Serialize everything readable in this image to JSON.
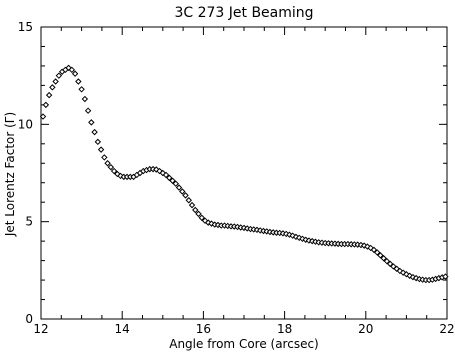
{
  "chart_data": {
    "type": "scatter",
    "title": "3C 273 Jet Beaming",
    "xlabel": "Angle from Core (arcsec)",
    "ylabel": "Jet Lorentz Factor (Γ)",
    "xlim": [
      12,
      22
    ],
    "ylim": [
      0,
      15
    ],
    "x_ticks": [
      12,
      14,
      16,
      18,
      20,
      22
    ],
    "y_ticks": [
      0,
      5,
      10,
      15
    ],
    "grid": false,
    "legend": "none",
    "marker": "diamond",
    "color": "#000000",
    "points": [
      [
        12.05,
        10.4
      ],
      [
        12.12,
        11.0
      ],
      [
        12.2,
        11.5
      ],
      [
        12.28,
        11.9
      ],
      [
        12.36,
        12.2
      ],
      [
        12.44,
        12.5
      ],
      [
        12.52,
        12.7
      ],
      [
        12.6,
        12.8
      ],
      [
        12.68,
        12.9
      ],
      [
        12.76,
        12.8
      ],
      [
        12.84,
        12.6
      ],
      [
        12.92,
        12.2
      ],
      [
        13.0,
        11.8
      ],
      [
        13.08,
        11.3
      ],
      [
        13.16,
        10.7
      ],
      [
        13.24,
        10.1
      ],
      [
        13.32,
        9.6
      ],
      [
        13.4,
        9.1
      ],
      [
        13.48,
        8.7
      ],
      [
        13.56,
        8.3
      ],
      [
        13.64,
        8.0
      ],
      [
        13.72,
        7.8
      ],
      [
        13.8,
        7.6
      ],
      [
        13.88,
        7.45
      ],
      [
        13.96,
        7.35
      ],
      [
        14.04,
        7.3
      ],
      [
        14.12,
        7.3
      ],
      [
        14.2,
        7.3
      ],
      [
        14.28,
        7.3
      ],
      [
        14.36,
        7.4
      ],
      [
        14.44,
        7.5
      ],
      [
        14.52,
        7.6
      ],
      [
        14.6,
        7.65
      ],
      [
        14.68,
        7.7
      ],
      [
        14.76,
        7.7
      ],
      [
        14.84,
        7.68
      ],
      [
        14.92,
        7.6
      ],
      [
        15.0,
        7.5
      ],
      [
        15.08,
        7.4
      ],
      [
        15.16,
        7.25
      ],
      [
        15.24,
        7.1
      ],
      [
        15.32,
        6.95
      ],
      [
        15.4,
        6.75
      ],
      [
        15.48,
        6.55
      ],
      [
        15.56,
        6.35
      ],
      [
        15.64,
        6.1
      ],
      [
        15.72,
        5.85
      ],
      [
        15.8,
        5.6
      ],
      [
        15.88,
        5.4
      ],
      [
        15.96,
        5.2
      ],
      [
        16.04,
        5.05
      ],
      [
        16.12,
        4.95
      ],
      [
        16.2,
        4.9
      ],
      [
        16.28,
        4.85
      ],
      [
        16.36,
        4.83
      ],
      [
        16.44,
        4.8
      ],
      [
        16.52,
        4.8
      ],
      [
        16.6,
        4.78
      ],
      [
        16.68,
        4.76
      ],
      [
        16.76,
        4.75
      ],
      [
        16.84,
        4.73
      ],
      [
        16.92,
        4.7
      ],
      [
        17.0,
        4.68
      ],
      [
        17.08,
        4.65
      ],
      [
        17.16,
        4.62
      ],
      [
        17.24,
        4.6
      ],
      [
        17.32,
        4.58
      ],
      [
        17.4,
        4.55
      ],
      [
        17.48,
        4.52
      ],
      [
        17.56,
        4.5
      ],
      [
        17.64,
        4.47
      ],
      [
        17.72,
        4.45
      ],
      [
        17.8,
        4.43
      ],
      [
        17.88,
        4.42
      ],
      [
        17.96,
        4.4
      ],
      [
        18.04,
        4.37
      ],
      [
        18.12,
        4.33
      ],
      [
        18.2,
        4.28
      ],
      [
        18.28,
        4.22
      ],
      [
        18.36,
        4.17
      ],
      [
        18.44,
        4.12
      ],
      [
        18.52,
        4.07
      ],
      [
        18.6,
        4.03
      ],
      [
        18.68,
        4.0
      ],
      [
        18.76,
        3.97
      ],
      [
        18.84,
        3.94
      ],
      [
        18.92,
        3.92
      ],
      [
        19.0,
        3.9
      ],
      [
        19.08,
        3.89
      ],
      [
        19.16,
        3.88
      ],
      [
        19.24,
        3.87
      ],
      [
        19.32,
        3.86
      ],
      [
        19.4,
        3.85
      ],
      [
        19.48,
        3.85
      ],
      [
        19.56,
        3.85
      ],
      [
        19.64,
        3.84
      ],
      [
        19.72,
        3.83
      ],
      [
        19.8,
        3.82
      ],
      [
        19.88,
        3.8
      ],
      [
        19.96,
        3.77
      ],
      [
        20.04,
        3.72
      ],
      [
        20.12,
        3.65
      ],
      [
        20.2,
        3.55
      ],
      [
        20.28,
        3.42
      ],
      [
        20.36,
        3.27
      ],
      [
        20.44,
        3.12
      ],
      [
        20.52,
        2.97
      ],
      [
        20.6,
        2.83
      ],
      [
        20.68,
        2.7
      ],
      [
        20.76,
        2.58
      ],
      [
        20.84,
        2.47
      ],
      [
        20.92,
        2.38
      ],
      [
        21.0,
        2.3
      ],
      [
        21.08,
        2.22
      ],
      [
        21.16,
        2.15
      ],
      [
        21.24,
        2.1
      ],
      [
        21.32,
        2.05
      ],
      [
        21.4,
        2.02
      ],
      [
        21.48,
        2.0
      ],
      [
        21.56,
        2.0
      ],
      [
        21.64,
        2.02
      ],
      [
        21.72,
        2.06
      ],
      [
        21.8,
        2.1
      ],
      [
        21.88,
        2.14
      ],
      [
        21.96,
        2.18
      ]
    ]
  }
}
